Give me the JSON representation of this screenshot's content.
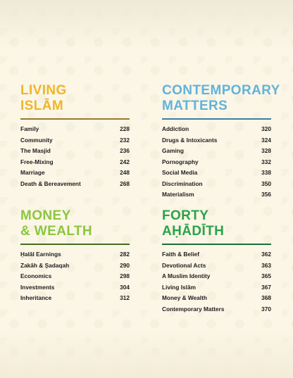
{
  "sections": {
    "living": {
      "title_line1": "Living",
      "title_line2": "Islām",
      "entries": [
        {
          "label": "Family",
          "page": "228"
        },
        {
          "label": "Community",
          "page": "232"
        },
        {
          "label": "The Masjid",
          "page": "236"
        },
        {
          "label": "Free-Mixing",
          "page": "242"
        },
        {
          "label": "Marriage",
          "page": "248"
        },
        {
          "label": "Death & Bereavement",
          "page": "268"
        }
      ]
    },
    "contemporary": {
      "title_line1": "Contemporary",
      "title_line2": "Matters",
      "entries": [
        {
          "label": "Addiction",
          "page": "320"
        },
        {
          "label": "Drugs & Intoxicants",
          "page": "324"
        },
        {
          "label": "Gaming",
          "page": "328"
        },
        {
          "label": "Pornography",
          "page": "332"
        },
        {
          "label": "Social Media",
          "page": "338"
        },
        {
          "label": "Discrimination",
          "page": "350"
        },
        {
          "label": "Materialism",
          "page": "356"
        }
      ]
    },
    "money": {
      "title_line1": "Money",
      "title_line2": "& Wealth",
      "entries": [
        {
          "label": "Ḥalāl Earnings",
          "page": "282"
        },
        {
          "label": "Zakāh & Ṣadaqah",
          "page": "290"
        },
        {
          "label": "Economics",
          "page": "298"
        },
        {
          "label": "Investments",
          "page": "304"
        },
        {
          "label": "Inheritance",
          "page": "312"
        }
      ]
    },
    "forty": {
      "title_line1": "Forty",
      "title_line2": "Aḥādīth",
      "entries": [
        {
          "label": "Faith & Belief",
          "page": "362"
        },
        {
          "label": "Devotional Acts",
          "page": "363"
        },
        {
          "label": "A Muslim Identity",
          "page": "365"
        },
        {
          "label": "Living Islām",
          "page": "367"
        },
        {
          "label": "Money & Wealth",
          "page": "368"
        },
        {
          "label": "Contemporary Matters",
          "page": "370"
        }
      ]
    }
  }
}
